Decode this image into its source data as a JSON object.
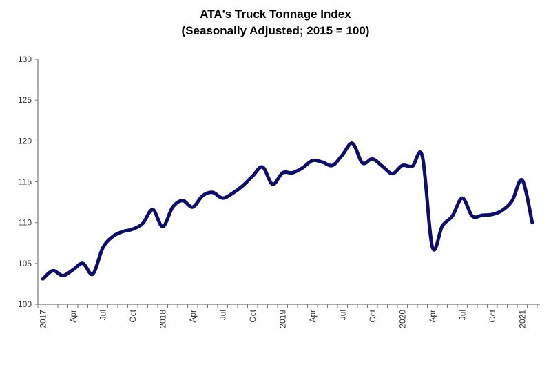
{
  "chart_data": {
    "type": "line",
    "title": "ATA's Truck Tonnage Index",
    "subtitle": "(Seasonally Adjusted; 2015 = 100)",
    "xlabel": "",
    "ylabel": "",
    "ylim": [
      100,
      130
    ],
    "yticks": [
      "100",
      "105",
      "110",
      "115",
      "120",
      "125",
      "130"
    ],
    "grid": false,
    "line_color": "#0d0d6b",
    "x_tick_labels": [
      "2017",
      "Apr",
      "Jul",
      "Oct",
      "2018",
      "Apr",
      "Jul",
      "Oct",
      "2019",
      "Apr",
      "Jul",
      "Oct",
      "2020",
      "Apr",
      "Jul",
      "Oct",
      "2021"
    ],
    "x_start": "2017-01",
    "x_end": "2021-02",
    "series": [
      {
        "values": [
          103.1,
          104.1,
          103.5,
          104.2,
          105.0,
          103.7,
          106.9,
          108.3,
          108.9,
          109.2,
          109.9,
          111.6,
          109.5,
          111.9,
          112.7,
          111.9,
          113.3,
          113.7,
          113.0,
          113.6,
          114.5,
          115.7,
          116.8,
          114.7,
          116.1,
          116.1,
          116.7,
          117.6,
          117.4,
          117.0,
          118.3,
          119.7,
          117.3,
          117.8,
          116.9,
          116.0,
          117.0,
          116.9,
          118.1,
          107.0,
          109.6,
          110.8,
          113.0,
          110.8,
          110.9,
          111.0,
          111.5,
          112.7,
          115.2,
          110.0
        ]
      }
    ]
  }
}
